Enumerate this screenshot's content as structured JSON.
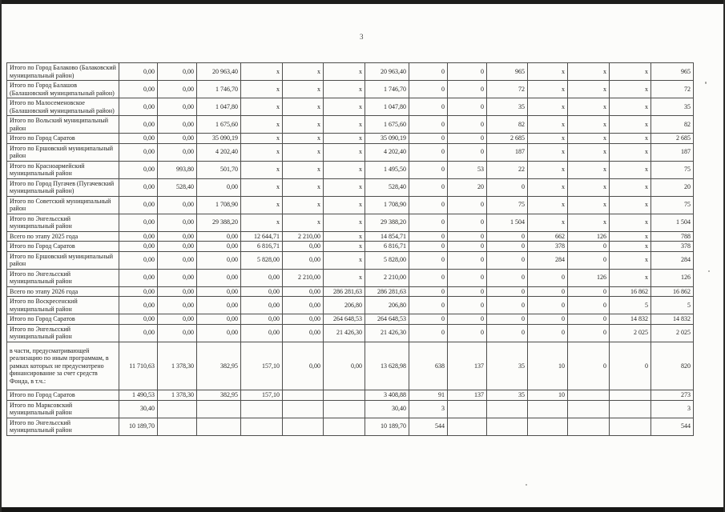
{
  "page": {
    "number": "3"
  },
  "table": {
    "rows": [
      {
        "name": "Итого по Город Балаково (Балаковский муниципальный район)",
        "values": [
          "0,00",
          "0,00",
          "20 963,40",
          "x",
          "x",
          "x",
          "20 963,40",
          "0",
          "0",
          "965",
          "x",
          "x",
          "x",
          "965"
        ]
      },
      {
        "name": "Итого по Город Балашов (Балашовский муниципальный район)",
        "values": [
          "0,00",
          "0,00",
          "1 746,70",
          "x",
          "x",
          "x",
          "1 746,70",
          "0",
          "0",
          "72",
          "x",
          "x",
          "x",
          "72"
        ]
      },
      {
        "name": "Итого по Малосеменовское (Балашовский муниципальный район)",
        "values": [
          "0,00",
          "0,00",
          "1 047,80",
          "x",
          "x",
          "x",
          "1 047,80",
          "0",
          "0",
          "35",
          "x",
          "x",
          "x",
          "35"
        ]
      },
      {
        "name": "Итого по Вольский муниципальный район",
        "values": [
          "0,00",
          "0,00",
          "1 675,60",
          "x",
          "x",
          "x",
          "1 675,60",
          "0",
          "0",
          "82",
          "x",
          "x",
          "x",
          "82"
        ]
      },
      {
        "name": "Итого по Город Саратов",
        "values": [
          "0,00",
          "0,00",
          "35 090,19",
          "x",
          "x",
          "x",
          "35 090,19",
          "0",
          "0",
          "2 685",
          "x",
          "x",
          "x",
          "2 685"
        ]
      },
      {
        "name": "Итого по Ершовский муниципальный район",
        "values": [
          "0,00",
          "0,00",
          "4 202,40",
          "x",
          "x",
          "x",
          "4 202,40",
          "0",
          "0",
          "187",
          "x",
          "x",
          "x",
          "187"
        ]
      },
      {
        "name": "Итого по Красноармейский муниципальный район",
        "values": [
          "0,00",
          "993,80",
          "501,70",
          "x",
          "x",
          "x",
          "1 495,50",
          "0",
          "53",
          "22",
          "x",
          "x",
          "x",
          "75"
        ]
      },
      {
        "name": "Итого по Город Пугачев (Пугачевский муниципальный район)",
        "values": [
          "0,00",
          "528,40",
          "0,00",
          "x",
          "x",
          "x",
          "528,40",
          "0",
          "20",
          "0",
          "x",
          "x",
          "x",
          "20"
        ]
      },
      {
        "name": "Итого по Советский муниципальный район",
        "values": [
          "0,00",
          "0,00",
          "1 708,90",
          "x",
          "x",
          "x",
          "1 708,90",
          "0",
          "0",
          "75",
          "x",
          "x",
          "x",
          "75"
        ]
      },
      {
        "name": "Итого по Энгельсский муниципальный район",
        "values": [
          "0,00",
          "0,00",
          "29 388,20",
          "x",
          "x",
          "x",
          "29 388,20",
          "0",
          "0",
          "1 504",
          "x",
          "x",
          "x",
          "1 504"
        ]
      },
      {
        "name": "Всего по этапу 2025 года",
        "values": [
          "0,00",
          "0,00",
          "0,00",
          "12 644,71",
          "2 210,00",
          "x",
          "14 854,71",
          "0",
          "0",
          "0",
          "662",
          "126",
          "x",
          "788"
        ]
      },
      {
        "name": "Итого по Город Саратов",
        "values": [
          "0,00",
          "0,00",
          "0,00",
          "6 816,71",
          "0,00",
          "x",
          "6 816,71",
          "0",
          "0",
          "0",
          "378",
          "0",
          "x",
          "378"
        ]
      },
      {
        "name": "Итого по Ершовский муниципальный район",
        "values": [
          "0,00",
          "0,00",
          "0,00",
          "5 828,00",
          "0,00",
          "x",
          "5 828,00",
          "0",
          "0",
          "0",
          "284",
          "0",
          "x",
          "284"
        ]
      },
      {
        "name": "Итого по Энгельсский муниципальный район",
        "values": [
          "0,00",
          "0,00",
          "0,00",
          "0,00",
          "2 210,00",
          "x",
          "2 210,00",
          "0",
          "0",
          "0",
          "0",
          "126",
          "x",
          "126"
        ]
      },
      {
        "name": "Всего по этапу 2026 года",
        "values": [
          "0,00",
          "0,00",
          "0,00",
          "0,00",
          "0,00",
          "286 281,63",
          "286 281,63",
          "0",
          "0",
          "0",
          "0",
          "0",
          "16 862",
          "16 862"
        ]
      },
      {
        "name": "Итого по Воскресенский муниципальный район",
        "values": [
          "0,00",
          "0,00",
          "0,00",
          "0,00",
          "0,00",
          "206,80",
          "206,80",
          "0",
          "0",
          "0",
          "0",
          "0",
          "5",
          "5"
        ]
      },
      {
        "name": "Итого по Город Саратов",
        "values": [
          "0,00",
          "0,00",
          "0,00",
          "0,00",
          "0,00",
          "264 648,53",
          "264 648,53",
          "0",
          "0",
          "0",
          "0",
          "0",
          "14 832",
          "14 832"
        ]
      },
      {
        "name": "Итого по Энгельсский муниципальный район",
        "values": [
          "0,00",
          "0,00",
          "0,00",
          "0,00",
          "0,00",
          "21 426,30",
          "21 426,30",
          "0",
          "0",
          "0",
          "0",
          "0",
          "2 025",
          "2 025"
        ]
      },
      {
        "name": "в части, предусматривающей реализацию по иным программам, в рамках которых не предусмотрено финансирование за счет средств Фонда, в т.ч.:",
        "tall": true,
        "values": [
          "11 710,63",
          "1 378,30",
          "382,95",
          "157,10",
          "0,00",
          "0,00",
          "13 628,98",
          "638",
          "137",
          "35",
          "10",
          "0",
          "0",
          "820"
        ]
      },
      {
        "name": "Итого по Город Саратов",
        "values": [
          "1 490,53",
          "1 378,30",
          "382,95",
          "157,10",
          "",
          "",
          "3 408,88",
          "91",
          "137",
          "35",
          "10",
          "",
          "",
          "273"
        ]
      },
      {
        "name": "Итого по Марксовский муниципальный район",
        "values": [
          "30,40",
          "",
          "",
          "",
          "",
          "",
          "30,40",
          "3",
          "",
          "",
          "",
          "",
          "",
          "3"
        ]
      },
      {
        "name": "Итого по Энгельсский муниципальный район",
        "values": [
          "10 189,70",
          "",
          "",
          "",
          "",
          "",
          "10 189,70",
          "544",
          "",
          "",
          "",
          "",
          "",
          "544"
        ]
      }
    ]
  }
}
